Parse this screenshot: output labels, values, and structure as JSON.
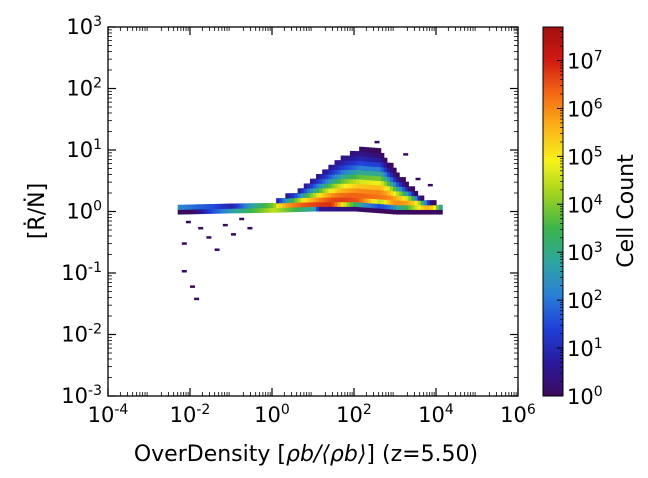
{
  "chart_data": {
    "type": "heatmap",
    "x_scale": "log",
    "y_scale": "log",
    "xlabel": {
      "prefix": "OverDensity [",
      "math": "ρb/⟨ρb⟩",
      "suffix": "] (z=5.50)"
    },
    "ylabel": "[Ṙ/Ṅ]",
    "xlim_log10": [
      -4,
      6
    ],
    "ylim_log10": [
      -3,
      3
    ],
    "x_ticks": [
      {
        "base": "10",
        "exp": "-4"
      },
      {
        "base": "10",
        "exp": "-2"
      },
      {
        "base": "10",
        "exp": "0"
      },
      {
        "base": "10",
        "exp": "2"
      },
      {
        "base": "10",
        "exp": "4"
      },
      {
        "base": "10",
        "exp": "6"
      }
    ],
    "y_ticks": [
      {
        "base": "10",
        "exp": "-3"
      },
      {
        "base": "10",
        "exp": "-2"
      },
      {
        "base": "10",
        "exp": "-1"
      },
      {
        "base": "10",
        "exp": "0"
      },
      {
        "base": "10",
        "exp": "1"
      },
      {
        "base": "10",
        "exp": "2"
      },
      {
        "base": "10",
        "exp": "3"
      }
    ],
    "colorbar": {
      "label": "Cell Count",
      "scale": "log",
      "range_log10": [
        0,
        7.7
      ],
      "ticks": [
        {
          "base": "10",
          "exp": "0"
        },
        {
          "base": "10",
          "exp": "1"
        },
        {
          "base": "10",
          "exp": "2"
        },
        {
          "base": "10",
          "exp": "3"
        },
        {
          "base": "10",
          "exp": "4"
        },
        {
          "base": "10",
          "exp": "5"
        },
        {
          "base": "10",
          "exp": "6"
        },
        {
          "base": "10",
          "exp": "7"
        }
      ],
      "colors": [
        "#3b0a5e",
        "#2a1a9c",
        "#1f3fd8",
        "#2a7fd6",
        "#2ea6a0",
        "#3bb44a",
        "#9fd21e",
        "#f7f21a",
        "#fbb417",
        "#f46a15",
        "#d11a12",
        "#a01010"
      ]
    },
    "density_region": {
      "description_units": "log10 of x and y",
      "upper_envelope": [
        [
          -2.3,
          0.05
        ],
        [
          -1.0,
          0.05
        ],
        [
          0.0,
          0.12
        ],
        [
          0.6,
          0.3
        ],
        [
          1.2,
          0.6
        ],
        [
          1.7,
          0.85
        ],
        [
          2.1,
          0.98
        ],
        [
          2.6,
          0.95
        ],
        [
          3.0,
          0.6
        ],
        [
          3.6,
          0.2
        ],
        [
          4.1,
          0.05
        ]
      ],
      "lower_envelope": [
        [
          -2.3,
          -0.05
        ],
        [
          -1.0,
          -0.03
        ],
        [
          0.0,
          -0.02
        ],
        [
          1.0,
          0.0
        ],
        [
          2.0,
          0.0
        ],
        [
          3.0,
          -0.05
        ],
        [
          4.1,
          -0.05
        ]
      ],
      "ridge": [
        [
          -2.3,
          0.0
        ],
        [
          -1.0,
          0.0
        ],
        [
          0.0,
          0.0
        ],
        [
          1.0,
          0.03
        ],
        [
          2.0,
          0.15
        ],
        [
          2.6,
          0.2
        ],
        [
          3.0,
          0.1
        ],
        [
          4.0,
          0.0
        ]
      ],
      "outliers": [
        [
          -2.1,
          -0.2
        ],
        [
          -1.8,
          -0.3
        ],
        [
          -2.2,
          -0.55
        ],
        [
          -1.6,
          -0.45
        ],
        [
          -1.2,
          -0.25
        ],
        [
          -0.8,
          -0.15
        ],
        [
          -2.2,
          -1.0
        ],
        [
          -2.0,
          -1.25
        ],
        [
          -1.9,
          -1.45
        ],
        [
          -1.4,
          -0.65
        ],
        [
          -0.6,
          -0.3
        ],
        [
          -1.0,
          -0.4
        ],
        [
          2.5,
          1.1
        ],
        [
          3.2,
          0.9
        ],
        [
          3.5,
          0.5
        ],
        [
          3.8,
          0.4
        ]
      ]
    }
  }
}
